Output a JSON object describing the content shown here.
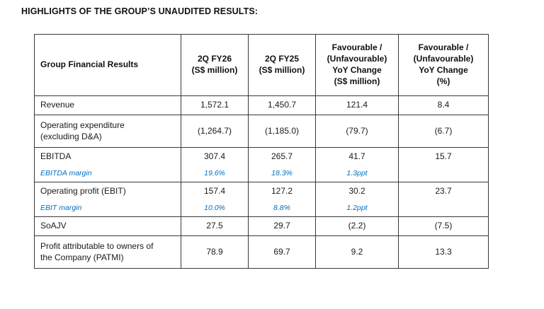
{
  "page": {
    "title": "HIGHLIGHTS OF THE GROUP’S UNAUDITED RESULTS:"
  },
  "colors": {
    "accent_blue": "#0070C0",
    "text": "#1a1a1a",
    "border": "#383838"
  },
  "table": {
    "headers": [
      "Group Financial Results",
      "2Q FY26\n(S$ million)",
      "2Q FY25\n(S$ million)",
      "Favourable /\n(Unfavourable)\nYoY Change\n(S$ million)",
      "Favourable /\n(Unfavourable)\nYoY Change\n(%)"
    ],
    "rows": [
      {
        "label": "Revenue",
        "values": [
          "1,572.1",
          "1,450.7",
          "121.4",
          "8.4"
        ],
        "margin": null
      },
      {
        "label": "Operating expenditure\n(excluding D&A)",
        "values": [
          "(1,264.7)",
          "(1,185.0)",
          "(79.7)",
          "(6.7)"
        ],
        "margin": null
      },
      {
        "label": "EBITDA",
        "values": [
          "307.4",
          "265.7",
          "41.7",
          "15.7"
        ],
        "margin": {
          "label": "EBITDA margin",
          "values": [
            "19.6%",
            "18.3%",
            "1.3ppt",
            ""
          ]
        }
      },
      {
        "label": "Operating profit (EBIT)",
        "values": [
          "157.4",
          "127.2",
          "30.2",
          "23.7"
        ],
        "margin": {
          "label": "EBIT margin",
          "values": [
            "10.0%",
            "8.8%",
            "1.2ppt",
            ""
          ]
        }
      },
      {
        "label": "SoAJV",
        "values": [
          "27.5",
          "29.7",
          "(2.2)",
          "(7.5)"
        ],
        "margin": null
      },
      {
        "label": "Profit attributable to owners of\nthe Company (PATMI)",
        "values": [
          "78.9",
          "69.7",
          "9.2",
          "13.3"
        ],
        "margin": null
      }
    ]
  }
}
